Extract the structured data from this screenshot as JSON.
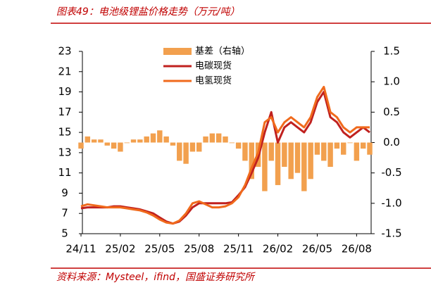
{
  "chart_data": {
    "type": "combo",
    "title": "图表49：电池级锂盐价格走势（万元/吨）",
    "source": "资料来源：Mysteel，ifind，国盛证券研究所",
    "categories": [
      "24/11",
      null,
      null,
      null,
      null,
      null,
      "25/02",
      null,
      null,
      null,
      null,
      null,
      "25/05",
      null,
      null,
      null,
      null,
      null,
      "25/08",
      null,
      null,
      null,
      null,
      null,
      "25/11",
      null,
      null,
      null,
      null,
      null,
      "26/02",
      null,
      null,
      null,
      null,
      null,
      "26/05",
      null,
      null,
      null,
      null,
      null,
      "26/08",
      null,
      null
    ],
    "ylim": [
      5,
      23
    ],
    "yticks": [
      5,
      7,
      9,
      11,
      13,
      15,
      17,
      19,
      21,
      23
    ],
    "y2lim": [
      -1.5,
      1.5
    ],
    "y2ticks": [
      -1.5,
      {
        "value": -1.0,
        "label": "-1.0"
      },
      -0.5,
      {
        "value": 0.0,
        "label": "0.0"
      },
      0.5,
      {
        "value": 1.0,
        "label": "1.0"
      },
      1.5
    ],
    "series": [
      {
        "name": "基差（右轴）",
        "type": "bar",
        "axis": "y2",
        "color": "#f2a04e",
        "values": [
          -0.1,
          0.1,
          0.05,
          0.05,
          -0.05,
          -0.1,
          -0.15,
          0.0,
          0.05,
          0.05,
          0.1,
          0.15,
          0.2,
          0.1,
          -0.05,
          -0.3,
          -0.35,
          -0.15,
          -0.15,
          0.1,
          0.15,
          0.15,
          0.1,
          0.0,
          -0.1,
          -0.3,
          -0.6,
          -0.4,
          -0.8,
          -0.3,
          -0.7,
          -0.4,
          -0.6,
          -0.5,
          -0.8,
          -0.6,
          -0.2,
          -0.3,
          -0.4,
          -0.1,
          -0.2,
          0.0,
          -0.3,
          -0.1,
          -0.2
        ]
      },
      {
        "name": "电碳现货",
        "type": "line",
        "color": "#c0211f",
        "values": [
          7.5,
          7.6,
          7.6,
          7.6,
          7.6,
          7.7,
          7.7,
          7.6,
          7.5,
          7.4,
          7.2,
          7.0,
          6.6,
          6.2,
          6.0,
          6.2,
          6.8,
          7.6,
          8.0,
          8.0,
          8.0,
          8.0,
          8.0,
          8.1,
          8.8,
          9.6,
          11.0,
          12.5,
          15.0,
          17.0,
          14.0,
          15.5,
          16.0,
          15.5,
          15.0,
          16.0,
          18.0,
          19.0,
          16.5,
          16.0,
          15.0,
          14.5,
          15.0,
          15.5,
          15.0
        ]
      },
      {
        "name": "电氢现货",
        "type": "line",
        "color": "#f06a1c",
        "values": [
          7.7,
          7.9,
          7.8,
          7.7,
          7.6,
          7.6,
          7.6,
          7.5,
          7.4,
          7.3,
          7.1,
          6.8,
          6.4,
          6.1,
          6.0,
          6.3,
          7.0,
          8.0,
          8.2,
          7.9,
          7.6,
          7.6,
          7.7,
          8.0,
          8.6,
          9.8,
          11.5,
          13.0,
          16.0,
          16.5,
          15.0,
          16.0,
          16.5,
          16.0,
          15.5,
          16.5,
          18.5,
          19.5,
          17.0,
          16.5,
          15.5,
          15.0,
          15.5,
          15.5,
          15.5
        ]
      }
    ]
  }
}
